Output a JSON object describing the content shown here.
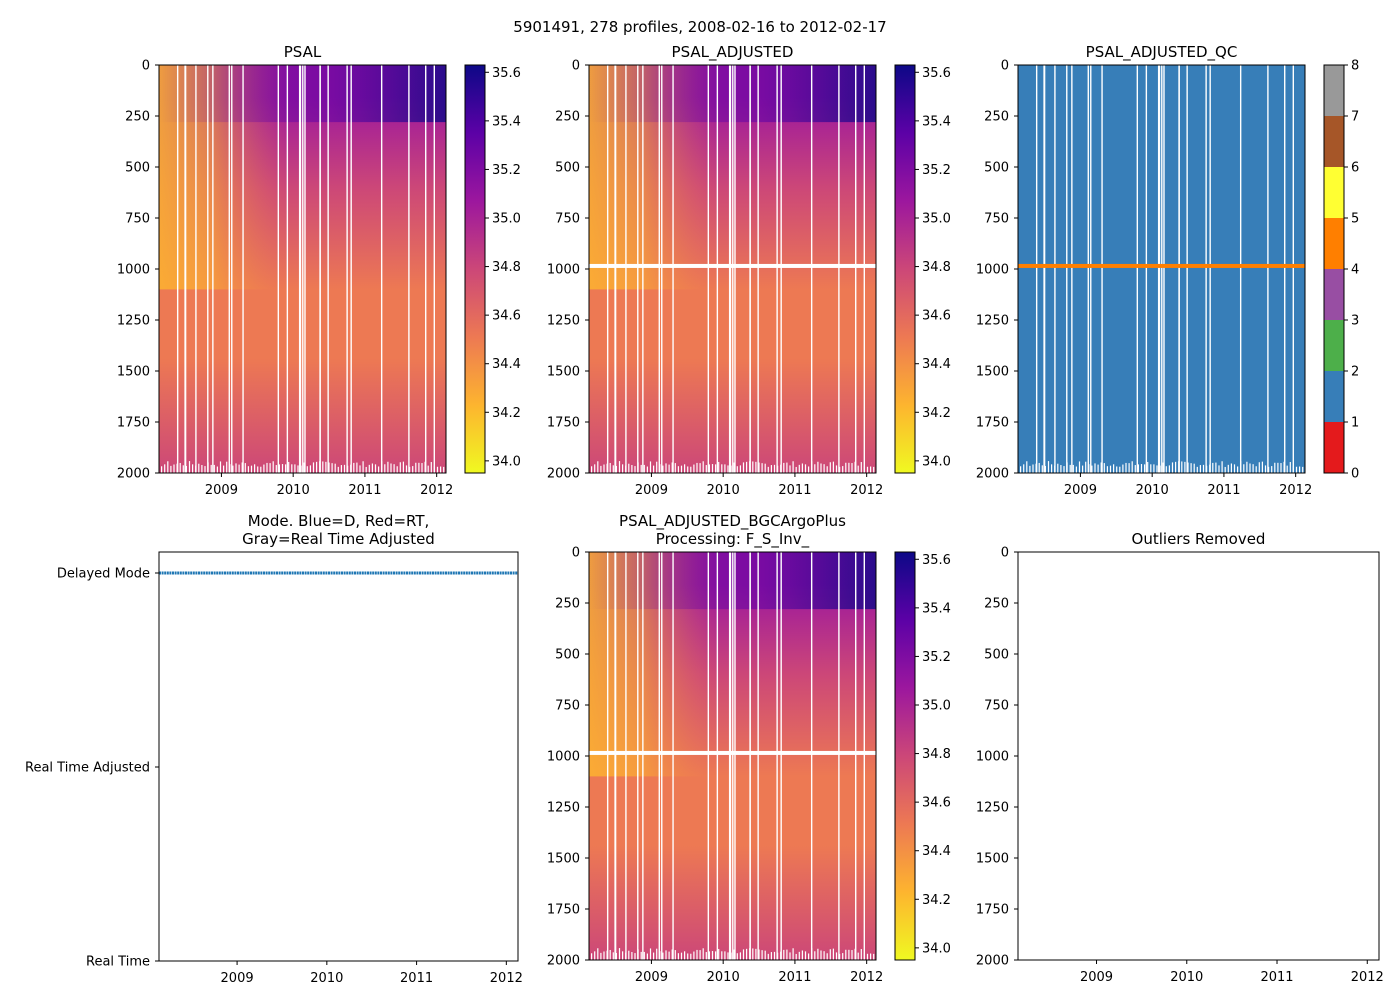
{
  "figure_title": "5901491, 278 profiles, 2008-02-16 to 2012-02-17",
  "colors": {
    "mode_line": "#1f77b4",
    "qc_palette": [
      "#e41a1c",
      "#377eb8",
      "#4daf4a",
      "#984ea3",
      "#ff7f00",
      "#ffff33",
      "#a65628",
      "#f781bf",
      "#999999"
    ],
    "plasma_stops": [
      "#f0f921",
      "#fdb42f",
      "#ed7953",
      "#cc4778",
      "#9c179e",
      "#5c01a6",
      "#0d0887"
    ]
  },
  "chart_data": [
    {
      "id": "psal",
      "type": "heatmap",
      "title": "PSAL",
      "xlabel": "",
      "ylabel": "",
      "x_range": [
        2008.13,
        2012.13
      ],
      "x_ticks": [
        "2009",
        "2010",
        "2011",
        "2012"
      ],
      "y_range": [
        0,
        2000
      ],
      "y_inverted": true,
      "y_ticks": [
        "0",
        "250",
        "500",
        "750",
        "1000",
        "1250",
        "1500",
        "1750",
        "2000"
      ],
      "colorbar": {
        "min": 33.95,
        "max": 35.63,
        "ticks": [
          "34.0",
          "34.2",
          "34.4",
          "34.6",
          "34.8",
          "35.0",
          "35.2",
          "35.4",
          "35.6"
        ]
      },
      "gap_line_depth": null
    },
    {
      "id": "psal_adjusted",
      "type": "heatmap",
      "title": "PSAL_ADJUSTED",
      "xlabel": "",
      "ylabel": "",
      "x_range": [
        2008.13,
        2012.13
      ],
      "x_ticks": [
        "2009",
        "2010",
        "2011",
        "2012"
      ],
      "y_range": [
        0,
        2000
      ],
      "y_inverted": true,
      "y_ticks": [
        "0",
        "250",
        "500",
        "750",
        "1000",
        "1250",
        "1500",
        "1750",
        "2000"
      ],
      "colorbar": {
        "min": 33.95,
        "max": 35.63,
        "ticks": [
          "34.0",
          "34.2",
          "34.4",
          "34.6",
          "34.8",
          "35.0",
          "35.2",
          "35.4",
          "35.6"
        ]
      },
      "gap_line_depth": 985
    },
    {
      "id": "psal_adjusted_qc",
      "type": "heatmap",
      "title": "PSAL_ADJUSTED_QC",
      "xlabel": "",
      "ylabel": "",
      "x_range": [
        2008.13,
        2012.13
      ],
      "x_ticks": [
        "2009",
        "2010",
        "2011",
        "2012"
      ],
      "y_range": [
        0,
        2000
      ],
      "y_inverted": true,
      "y_ticks": [
        "0",
        "250",
        "500",
        "750",
        "1000",
        "1250",
        "1500",
        "1750",
        "2000"
      ],
      "dominant_flag": 1,
      "flag4_line_depth": 985,
      "colorbar": {
        "min": 0,
        "max": 8,
        "ticks": [
          "0",
          "1",
          "2",
          "3",
          "4",
          "5",
          "6",
          "7",
          "8"
        ]
      }
    },
    {
      "id": "mode",
      "type": "line",
      "title": "Mode. Blue=D, Red=RT,",
      "title2": "Gray=Real Time Adjusted",
      "xlabel": "",
      "ylabel": "",
      "x_range": [
        2008.13,
        2012.13
      ],
      "x_ticks": [
        "2009",
        "2010",
        "2011",
        "2012"
      ],
      "y_categories": [
        "Real Time",
        "Real Time Adjusted",
        "Delayed Mode"
      ],
      "series": [
        {
          "name": "Delayed Mode",
          "value": "Delayed Mode",
          "x": [
            2008.13,
            2012.13
          ]
        }
      ]
    },
    {
      "id": "psal_bgc",
      "type": "heatmap",
      "title": "PSAL_ADJUSTED_BGCArgoPlus",
      "title2": "Processing: F_S_Inv_",
      "xlabel": "",
      "ylabel": "",
      "x_range": [
        2008.13,
        2012.13
      ],
      "x_ticks": [
        "2009",
        "2010",
        "2011",
        "2012"
      ],
      "y_range": [
        0,
        2000
      ],
      "y_inverted": true,
      "y_ticks": [
        "0",
        "250",
        "500",
        "750",
        "1000",
        "1250",
        "1500",
        "1750",
        "2000"
      ],
      "colorbar": {
        "min": 33.95,
        "max": 35.63,
        "ticks": [
          "34.0",
          "34.2",
          "34.4",
          "34.6",
          "34.8",
          "35.0",
          "35.2",
          "35.4",
          "35.6"
        ]
      },
      "gap_line_depth": 985
    },
    {
      "id": "outliers",
      "type": "scatter",
      "title": "Outliers Removed",
      "xlabel": "",
      "ylabel": "",
      "x_range": [
        2008.13,
        2012.13
      ],
      "x_ticks": [
        "2009",
        "2010",
        "2011",
        "2012"
      ],
      "y_range": [
        0,
        2000
      ],
      "y_inverted": true,
      "y_ticks": [
        "0",
        "250",
        "500",
        "750",
        "1000",
        "1250",
        "1500",
        "1750",
        "2000"
      ],
      "points": []
    }
  ]
}
